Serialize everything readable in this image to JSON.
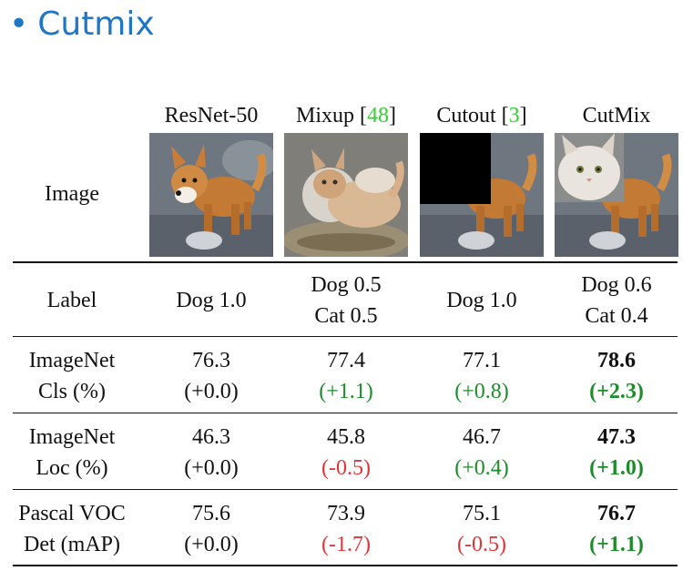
{
  "slide": {
    "bullet": "•",
    "title": "Cutmix"
  },
  "columns": [
    {
      "name": "ResNet-50",
      "cite": ""
    },
    {
      "name": "Mixup [",
      "cite": "48",
      "close": "]"
    },
    {
      "name": "Cutout [",
      "cite": "3",
      "close": "]"
    },
    {
      "name": "CutMix",
      "cite": ""
    }
  ],
  "rows": {
    "image": {
      "label": "Image"
    },
    "label": {
      "label": "Label",
      "cells": [
        [
          "Dog 1.0"
        ],
        [
          "Dog 0.5",
          "Cat 0.5"
        ],
        [
          "Dog 1.0"
        ],
        [
          "Dog 0.6",
          "Cat 0.4"
        ]
      ]
    },
    "cls": {
      "label": [
        "ImageNet",
        "Cls (%)"
      ],
      "values": [
        "76.3",
        "77.4",
        "77.1",
        "78.6"
      ],
      "deltas": [
        "(+0.0)",
        "(+1.1)",
        "(+0.8)",
        "(+2.3)"
      ]
    },
    "loc": {
      "label": [
        "ImageNet",
        "Loc (%)"
      ],
      "values": [
        "46.3",
        "45.8",
        "46.7",
        "47.3"
      ],
      "deltas": [
        "(+0.0)",
        "(-0.5)",
        "(+0.4)",
        "(+1.0)"
      ]
    },
    "det": {
      "label": [
        "Pascal VOC",
        "Det (mAP)"
      ],
      "values": [
        "75.6",
        "73.9",
        "75.1",
        "76.7"
      ],
      "deltas": [
        "(+0.0)",
        "(-1.7)",
        "(-0.5)",
        "(+1.1)"
      ]
    }
  },
  "colors": {
    "title": "#1f77c4",
    "citation": "#2fd12f",
    "positive": "#1e8c2a",
    "negative": "#e0343a"
  }
}
